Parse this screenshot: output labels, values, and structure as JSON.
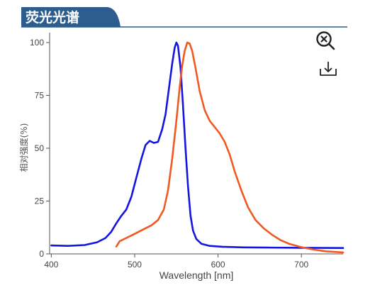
{
  "header": {
    "title": "荧光光谱",
    "tab_color": "#2c5d8e"
  },
  "toolbar": {
    "zoom_icon": "zoom-reset-icon",
    "download_icon": "download-icon"
  },
  "chart_data": {
    "type": "line",
    "title": "",
    "xlabel": "Wavelength [nm]",
    "ylabel": "相对强度(%)",
    "xlim": [
      398,
      750
    ],
    "ylim": [
      0,
      100
    ],
    "xticks": [
      400,
      500,
      600,
      700
    ],
    "yticks": [
      0,
      25,
      50,
      75,
      100
    ],
    "grid": false,
    "legend": "none",
    "series": [
      {
        "color": "#1515e0",
        "points": [
          [
            400,
            4
          ],
          [
            420,
            3.8
          ],
          [
            440,
            4.2
          ],
          [
            455,
            5.5
          ],
          [
            465,
            7.5
          ],
          [
            472,
            10.5
          ],
          [
            478,
            14.5
          ],
          [
            484,
            18
          ],
          [
            490,
            21
          ],
          [
            496,
            27
          ],
          [
            502,
            36
          ],
          [
            508,
            45
          ],
          [
            513,
            51.5
          ],
          [
            518,
            53.5
          ],
          [
            523,
            52.5
          ],
          [
            528,
            53
          ],
          [
            533,
            59
          ],
          [
            537,
            66
          ],
          [
            541,
            78
          ],
          [
            545,
            90
          ],
          [
            548,
            97.5
          ],
          [
            550,
            100
          ],
          [
            552,
            98.5
          ],
          [
            555,
            88
          ],
          [
            558,
            70
          ],
          [
            561,
            50
          ],
          [
            564,
            32
          ],
          [
            567,
            18
          ],
          [
            570,
            11
          ],
          [
            574,
            7
          ],
          [
            580,
            4.8
          ],
          [
            590,
            3.8
          ],
          [
            605,
            3.4
          ],
          [
            630,
            3.1
          ],
          [
            660,
            3
          ],
          [
            700,
            2.9
          ],
          [
            750,
            2.8
          ]
        ]
      },
      {
        "color": "#f05a22",
        "points": [
          [
            478,
            3.5
          ],
          [
            482,
            6
          ],
          [
            490,
            7.5
          ],
          [
            500,
            9.5
          ],
          [
            510,
            11.5
          ],
          [
            520,
            13.5
          ],
          [
            528,
            16
          ],
          [
            535,
            21
          ],
          [
            540,
            30
          ],
          [
            545,
            45
          ],
          [
            550,
            63
          ],
          [
            554,
            79
          ],
          [
            557,
            89
          ],
          [
            560,
            96
          ],
          [
            563,
            100
          ],
          [
            566,
            99.5
          ],
          [
            569,
            96
          ],
          [
            573,
            88
          ],
          [
            578,
            77
          ],
          [
            584,
            68
          ],
          [
            590,
            63
          ],
          [
            596,
            60
          ],
          [
            602,
            57
          ],
          [
            608,
            53
          ],
          [
            614,
            47
          ],
          [
            620,
            39
          ],
          [
            628,
            30
          ],
          [
            636,
            22
          ],
          [
            645,
            16
          ],
          [
            655,
            12
          ],
          [
            665,
            9
          ],
          [
            675,
            6.5
          ],
          [
            685,
            4.8
          ],
          [
            700,
            3.2
          ],
          [
            715,
            2
          ],
          [
            730,
            1.2
          ],
          [
            750,
            0.7
          ]
        ]
      }
    ]
  }
}
